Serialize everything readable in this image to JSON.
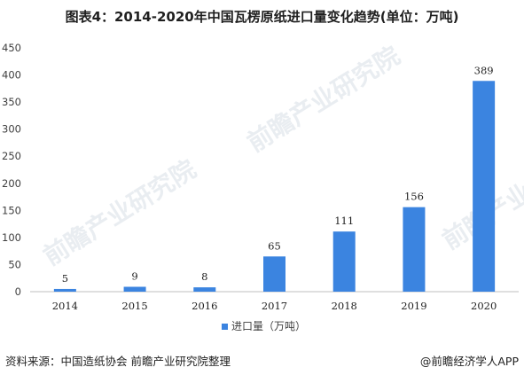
{
  "title": "图表4：2014-2020年中国瓦楞原纸进口量变化趋势(单位：万吨)",
  "source": "资料来源：中国造纸协会 前瞻产业研究院整理",
  "credit": "@前瞻经济学人APP",
  "watermark": "前瞻产业研究院",
  "colors": {
    "bar": "#3b84e0",
    "axis": "#bfbfbf",
    "text": "#404040",
    "watermark": "#e9edf1"
  },
  "chart_data": {
    "type": "bar",
    "categories": [
      "2014",
      "2015",
      "2016",
      "2017",
      "2018",
      "2019",
      "2020"
    ],
    "series": [
      {
        "name": "进口量（万吨）",
        "values": [
          5,
          9,
          8,
          65,
          111,
          156,
          389
        ]
      }
    ],
    "ylim": [
      0,
      450
    ],
    "yticks": [
      0,
      50,
      100,
      150,
      200,
      250,
      300,
      350,
      400,
      450
    ],
    "grid": false,
    "legend": "bottom-center",
    "data_labels": true
  }
}
